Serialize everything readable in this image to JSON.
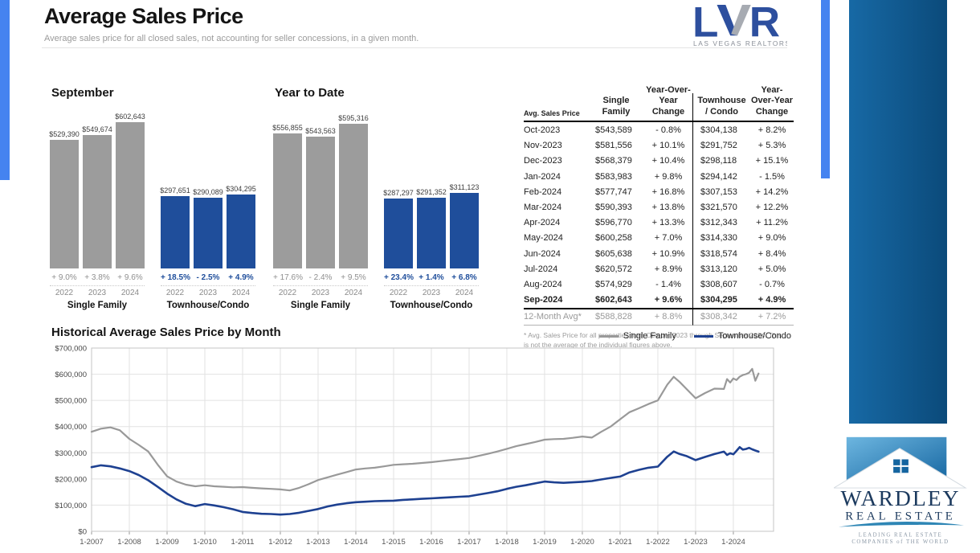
{
  "page": {
    "title": "Average Sales Price",
    "subtitle": "Average sales price for all closed sales, not accounting for seller concessions, in a given month.",
    "lvr_logo": {
      "text": "LVR",
      "caption": "LAS VEGAS REALTORS®"
    },
    "wardley_logo": {
      "line1": "WARDLEY",
      "line2": "REAL ESTATE",
      "tagline1": "LEADING REAL ESTATE",
      "tagline2": "COMPANIES of THE WORLD"
    }
  },
  "colors": {
    "bar_gray": "#9c9c9c",
    "bar_blue": "#1f4e9b",
    "line_gray": "#999999",
    "line_blue": "#1e4191",
    "accent_strip": "#4583f0",
    "side_bar_start": "#1769a5",
    "side_bar_end": "#0b4a7a",
    "lvr_blue": "#2d4f9e"
  },
  "chart_data": [
    {
      "type": "bar",
      "title": "September",
      "groups": [
        {
          "label": "Single Family",
          "color_key": "bar_gray",
          "bars": [
            {
              "year": "2022",
              "value": 529390,
              "value_label": "$529,390",
              "change": "+ 9.0%"
            },
            {
              "year": "2023",
              "value": 549674,
              "value_label": "$549,674",
              "change": "+ 3.8%"
            },
            {
              "year": "2024",
              "value": 602643,
              "value_label": "$602,643",
              "change": "+ 9.6%"
            }
          ]
        },
        {
          "label": "Townhouse/Condo",
          "color_key": "bar_blue",
          "bars": [
            {
              "year": "2022",
              "value": 297651,
              "value_label": "$297,651",
              "change": "+ 18.5%"
            },
            {
              "year": "2023",
              "value": 290089,
              "value_label": "$290,089",
              "change": "- 2.5%"
            },
            {
              "year": "2024",
              "value": 304295,
              "value_label": "$304,295",
              "change": "+ 4.9%"
            }
          ]
        }
      ]
    },
    {
      "type": "bar",
      "title": "Year to Date",
      "groups": [
        {
          "label": "Single Family",
          "color_key": "bar_gray",
          "bars": [
            {
              "year": "2022",
              "value": 556855,
              "value_label": "$556,855",
              "change": "+ 17.6%"
            },
            {
              "year": "2023",
              "value": 543563,
              "value_label": "$543,563",
              "change": "- 2.4%"
            },
            {
              "year": "2024",
              "value": 595316,
              "value_label": "$595,316",
              "change": "+ 9.5%"
            }
          ]
        },
        {
          "label": "Townhouse/Condo",
          "color_key": "bar_blue",
          "bars": [
            {
              "year": "2022",
              "value": 287297,
              "value_label": "$287,297",
              "change": "+ 23.4%"
            },
            {
              "year": "2023",
              "value": 291352,
              "value_label": "$291,352",
              "change": "+ 1.4%"
            },
            {
              "year": "2024",
              "value": 311123,
              "value_label": "$311,123",
              "change": "+ 6.8%"
            }
          ]
        }
      ]
    },
    {
      "type": "table",
      "columns": [
        "Avg. Sales Price",
        "Single\nFamily",
        "Year-Over-Year\nChange",
        "Townhouse\n/ Condo",
        "Year-Over-Year\nChange"
      ],
      "rows": [
        [
          "Oct-2023",
          "$543,589",
          "- 0.8%",
          "$304,138",
          "+ 8.2%"
        ],
        [
          "Nov-2023",
          "$581,556",
          "+ 10.1%",
          "$291,752",
          "+ 5.3%"
        ],
        [
          "Dec-2023",
          "$568,379",
          "+ 10.4%",
          "$298,118",
          "+ 15.1%"
        ],
        [
          "Jan-2024",
          "$583,983",
          "+ 9.8%",
          "$294,142",
          "- 1.5%"
        ],
        [
          "Feb-2024",
          "$577,747",
          "+ 16.8%",
          "$307,153",
          "+ 14.2%"
        ],
        [
          "Mar-2024",
          "$590,393",
          "+ 13.8%",
          "$321,570",
          "+ 12.2%"
        ],
        [
          "Apr-2024",
          "$596,770",
          "+ 13.3%",
          "$312,343",
          "+ 11.2%"
        ],
        [
          "May-2024",
          "$600,258",
          "+ 7.0%",
          "$314,330",
          "+ 9.0%"
        ],
        [
          "Jun-2024",
          "$605,638",
          "+ 10.9%",
          "$318,574",
          "+ 8.4%"
        ],
        [
          "Jul-2024",
          "$620,572",
          "+ 8.9%",
          "$313,120",
          "+ 5.0%"
        ],
        [
          "Aug-2024",
          "$574,929",
          "- 1.4%",
          "$308,607",
          "- 0.7%"
        ],
        [
          "Sep-2024",
          "$602,643",
          "+ 9.6%",
          "$304,295",
          "+ 4.9%"
        ]
      ],
      "summary_row": [
        "12-Month Avg*",
        "$588,828",
        "+ 8.8%",
        "$308,342",
        "+ 7.2%"
      ],
      "footnote": "* Avg. Sales Price for all properties from October 2023 through September 2024. This is not the average of the individual figures above."
    },
    {
      "type": "line",
      "title": "Historical Average Sales Price by Month",
      "legend": [
        "Single Family",
        "Townhouse/Condo"
      ],
      "y_ticks": [
        "$700,000",
        "$600,000",
        "$500,000",
        "$400,000",
        "$300,000",
        "$200,000",
        "$100,000",
        "$0"
      ],
      "ylim": [
        0,
        700000
      ],
      "x_ticks": [
        "1-2007",
        "1-2008",
        "1-2009",
        "1-2010",
        "1-2011",
        "1-2012",
        "1-2013",
        "1-2014",
        "1-2015",
        "1-2016",
        "1-2017",
        "1-2018",
        "1-2019",
        "1-2020",
        "1-2021",
        "1-2022",
        "1-2023",
        "1-2024"
      ],
      "x": [
        2007,
        2007.25,
        2007.5,
        2007.75,
        2008,
        2008.25,
        2008.5,
        2008.75,
        2009,
        2009.25,
        2009.5,
        2009.75,
        2010,
        2010.25,
        2010.5,
        2010.75,
        2011,
        2011.25,
        2011.5,
        2011.75,
        2012,
        2012.25,
        2012.5,
        2012.75,
        2013,
        2013.25,
        2013.5,
        2013.75,
        2014,
        2014.25,
        2014.5,
        2014.75,
        2015,
        2015.25,
        2015.5,
        2015.75,
        2016,
        2016.25,
        2016.5,
        2016.75,
        2017,
        2017.25,
        2017.5,
        2017.75,
        2018,
        2018.25,
        2018.5,
        2018.75,
        2019,
        2019.25,
        2019.5,
        2019.75,
        2020,
        2020.25,
        2020.5,
        2020.75,
        2021,
        2021.25,
        2021.5,
        2021.75,
        2022,
        2022.25,
        2022.42,
        2022.58,
        2022.75,
        2023,
        2023.25,
        2023.5,
        2023.75,
        2023.833,
        2023.917,
        2024,
        2024.083,
        2024.167,
        2024.25,
        2024.333,
        2024.417,
        2024.5,
        2024.583,
        2024.667
      ],
      "series": [
        {
          "name": "Single Family",
          "color_key": "line_gray",
          "values": [
            380000,
            392000,
            397000,
            386000,
            353000,
            330000,
            305000,
            255000,
            210000,
            190000,
            178000,
            172000,
            176000,
            172000,
            170000,
            168000,
            169000,
            166000,
            164000,
            162000,
            160000,
            156000,
            166000,
            180000,
            196000,
            206000,
            216000,
            226000,
            236000,
            240000,
            243000,
            248000,
            254000,
            256000,
            258000,
            261000,
            264000,
            268000,
            272000,
            276000,
            280000,
            288000,
            296000,
            305000,
            315000,
            325000,
            333000,
            341000,
            350000,
            352000,
            353000,
            357000,
            362000,
            358000,
            380000,
            400000,
            428000,
            455000,
            470000,
            486000,
            500000,
            560000,
            590000,
            570000,
            545000,
            508000,
            528000,
            545000,
            543589,
            581556,
            568379,
            583983,
            577747,
            590393,
            596770,
            600258,
            605638,
            620572,
            574929,
            602643
          ]
        },
        {
          "name": "Townhouse/Condo",
          "color_key": "line_blue",
          "values": [
            245000,
            252000,
            248000,
            240000,
            230000,
            215000,
            195000,
            170000,
            144000,
            122000,
            105000,
            96000,
            104000,
            99000,
            92000,
            84000,
            74000,
            70000,
            67000,
            66000,
            64000,
            66000,
            71000,
            78000,
            85000,
            95000,
            102000,
            107000,
            111000,
            113000,
            115000,
            116000,
            117000,
            120000,
            122000,
            124000,
            126000,
            128000,
            130000,
            132000,
            134000,
            140000,
            146000,
            153000,
            162000,
            170000,
            176000,
            183000,
            190000,
            187000,
            185000,
            187000,
            189000,
            192000,
            198000,
            204000,
            209000,
            225000,
            235000,
            243000,
            247000,
            285000,
            305000,
            295000,
            288000,
            272000,
            284000,
            295000,
            304138,
            291752,
            298118,
            294142,
            307153,
            321570,
            312343,
            314330,
            318574,
            313120,
            308607,
            304295
          ]
        }
      ]
    }
  ]
}
